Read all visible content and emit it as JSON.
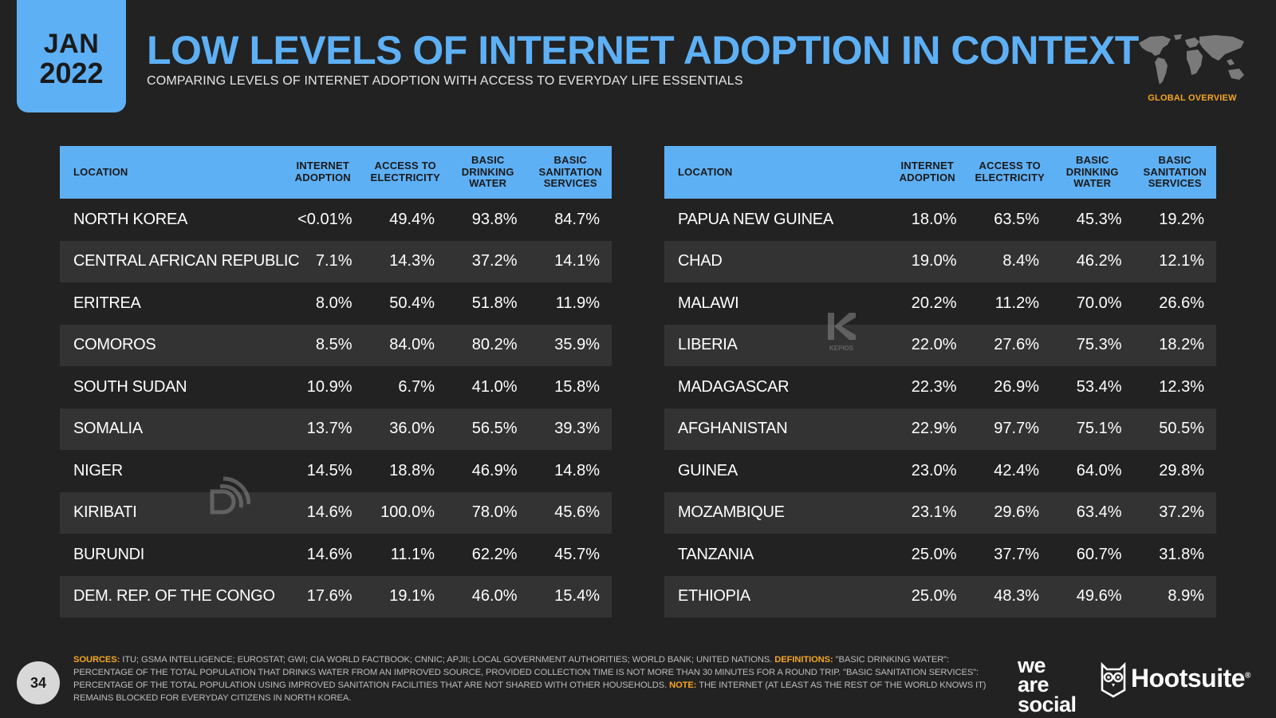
{
  "badge": {
    "month": "JAN",
    "year": "2022"
  },
  "title": "LOW LEVELS OF INTERNET ADOPTION IN CONTEXT",
  "subtitle": "COMPARING LEVELS OF INTERNET ADOPTION WITH ACCESS TO EVERYDAY LIFE ESSENTIALS",
  "global_overview": "GLOBAL OVERVIEW",
  "columns": [
    "LOCATION",
    "INTERNET ADOPTION",
    "ACCESS TO ELECTRICITY",
    "BASIC DRINKING WATER",
    "BASIC SANITATION SERVICES"
  ],
  "left_table": [
    [
      "NORTH KOREA",
      "<0.01%",
      "49.4%",
      "93.8%",
      "84.7%"
    ],
    [
      "CENTRAL AFRICAN REPUBLIC",
      "7.1%",
      "14.3%",
      "37.2%",
      "14.1%"
    ],
    [
      "ERITREA",
      "8.0%",
      "50.4%",
      "51.8%",
      "11.9%"
    ],
    [
      "COMOROS",
      "8.5%",
      "84.0%",
      "80.2%",
      "35.9%"
    ],
    [
      "SOUTH SUDAN",
      "10.9%",
      "6.7%",
      "41.0%",
      "15.8%"
    ],
    [
      "SOMALIA",
      "13.7%",
      "36.0%",
      "56.5%",
      "39.3%"
    ],
    [
      "NIGER",
      "14.5%",
      "18.8%",
      "46.9%",
      "14.8%"
    ],
    [
      "KIRIBATI",
      "14.6%",
      "100.0%",
      "78.0%",
      "45.6%"
    ],
    [
      "BURUNDI",
      "14.6%",
      "11.1%",
      "62.2%",
      "45.7%"
    ],
    [
      "DEM. REP. OF THE CONGO",
      "17.6%",
      "19.1%",
      "46.0%",
      "15.4%"
    ]
  ],
  "right_table": [
    [
      "PAPUA NEW GUINEA",
      "18.0%",
      "63.5%",
      "45.3%",
      "19.2%"
    ],
    [
      "CHAD",
      "19.0%",
      "8.4%",
      "46.2%",
      "12.1%"
    ],
    [
      "MALAWI",
      "20.2%",
      "11.2%",
      "70.0%",
      "26.6%"
    ],
    [
      "LIBERIA",
      "22.0%",
      "27.6%",
      "75.3%",
      "18.2%"
    ],
    [
      "MADAGASCAR",
      "22.3%",
      "26.9%",
      "53.4%",
      "12.3%"
    ],
    [
      "AFGHANISTAN",
      "22.9%",
      "97.7%",
      "75.1%",
      "50.5%"
    ],
    [
      "GUINEA",
      "23.0%",
      "42.4%",
      "64.0%",
      "29.8%"
    ],
    [
      "MOZAMBIQUE",
      "23.1%",
      "29.6%",
      "63.4%",
      "37.2%"
    ],
    [
      "TANZANIA",
      "25.0%",
      "37.7%",
      "60.7%",
      "31.8%"
    ],
    [
      "ETHIOPIA",
      "25.0%",
      "48.3%",
      "49.6%",
      "8.9%"
    ]
  ],
  "watermark_kepios": "KEPIOS",
  "page_number": "34",
  "footnote": {
    "sources_label": "SOURCES:",
    "sources_text": " ITU; GSMA INTELLIGENCE; EUROSTAT; GWI; CIA WORLD FACTBOOK; CNNIC; APJII; LOCAL GOVERNMENT AUTHORITIES; WORLD BANK; UNITED NATIONS. ",
    "definitions_label": "DEFINITIONS:",
    "definitions_text": " \"BASIC DRINKING WATER\": PERCENTAGE OF THE TOTAL POPULATION THAT DRINKS WATER FROM AN IMPROVED SOURCE, PROVIDED COLLECTION TIME IS NOT MORE THAN 30 MINUTES FOR A ROUND TRIP. \"BASIC SANITATION SERVICES\": PERCENTAGE OF THE TOTAL POPULATION USING IMPROVED SANITATION FACILITIES THAT ARE NOT SHARED WITH OTHER HOUSEHOLDS. ",
    "note_label": "NOTE:",
    "note_text": " THE INTERNET (AT LEAST AS THE REST OF THE WORLD KNOWS IT) REMAINS BLOCKED FOR EVERYDAY CITIZENS IN NORTH KOREA."
  },
  "logos": {
    "we_are_social": [
      "we",
      "are",
      "social"
    ],
    "hootsuite": "Hootsuite",
    "hootsuite_mark": "®"
  }
}
